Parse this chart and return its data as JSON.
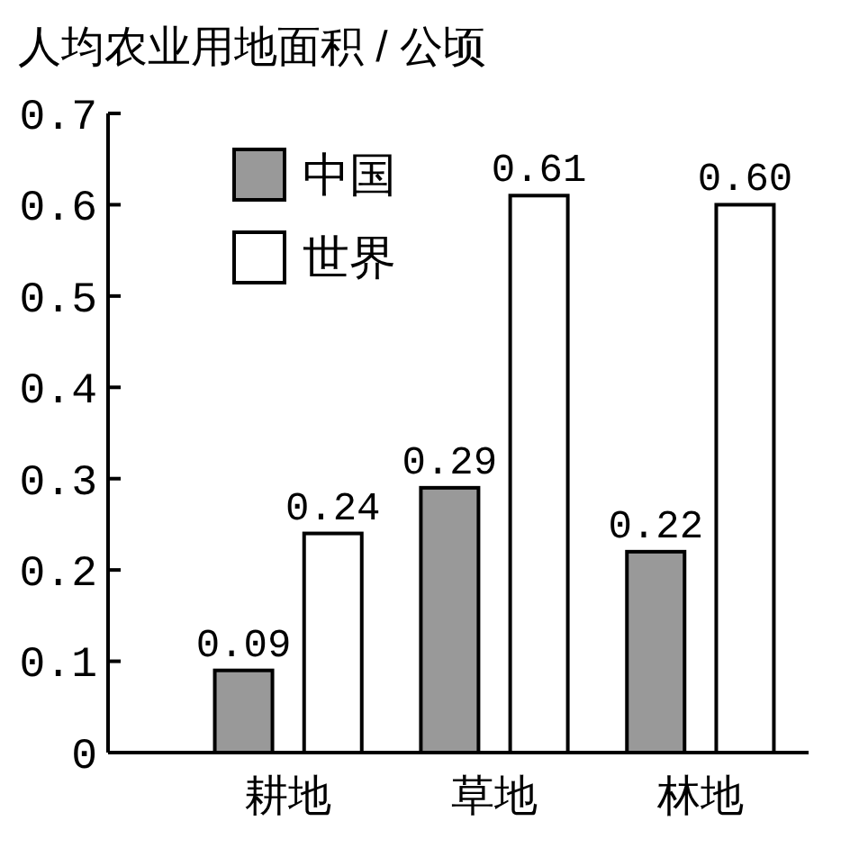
{
  "chart_data": {
    "type": "bar",
    "ylabel": "人均农业用地面积 / 公顷",
    "categories": [
      "耕地",
      "草地",
      "林地"
    ],
    "series": [
      {
        "name": "中国",
        "color": "#999999",
        "values": [
          0.09,
          0.29,
          0.22
        ],
        "value_labels": [
          "0.09",
          "0.29",
          "0.22"
        ]
      },
      {
        "name": "世界",
        "color": "#ffffff",
        "values": [
          0.24,
          0.61,
          0.6
        ],
        "value_labels": [
          "0.24",
          "0.61",
          "0.60"
        ]
      }
    ],
    "ylim": [
      0,
      0.7
    ],
    "yticks": [
      0,
      0.1,
      0.2,
      0.3,
      0.4,
      0.5,
      0.6,
      0.7
    ],
    "grid": false,
    "legend": "top left"
  }
}
